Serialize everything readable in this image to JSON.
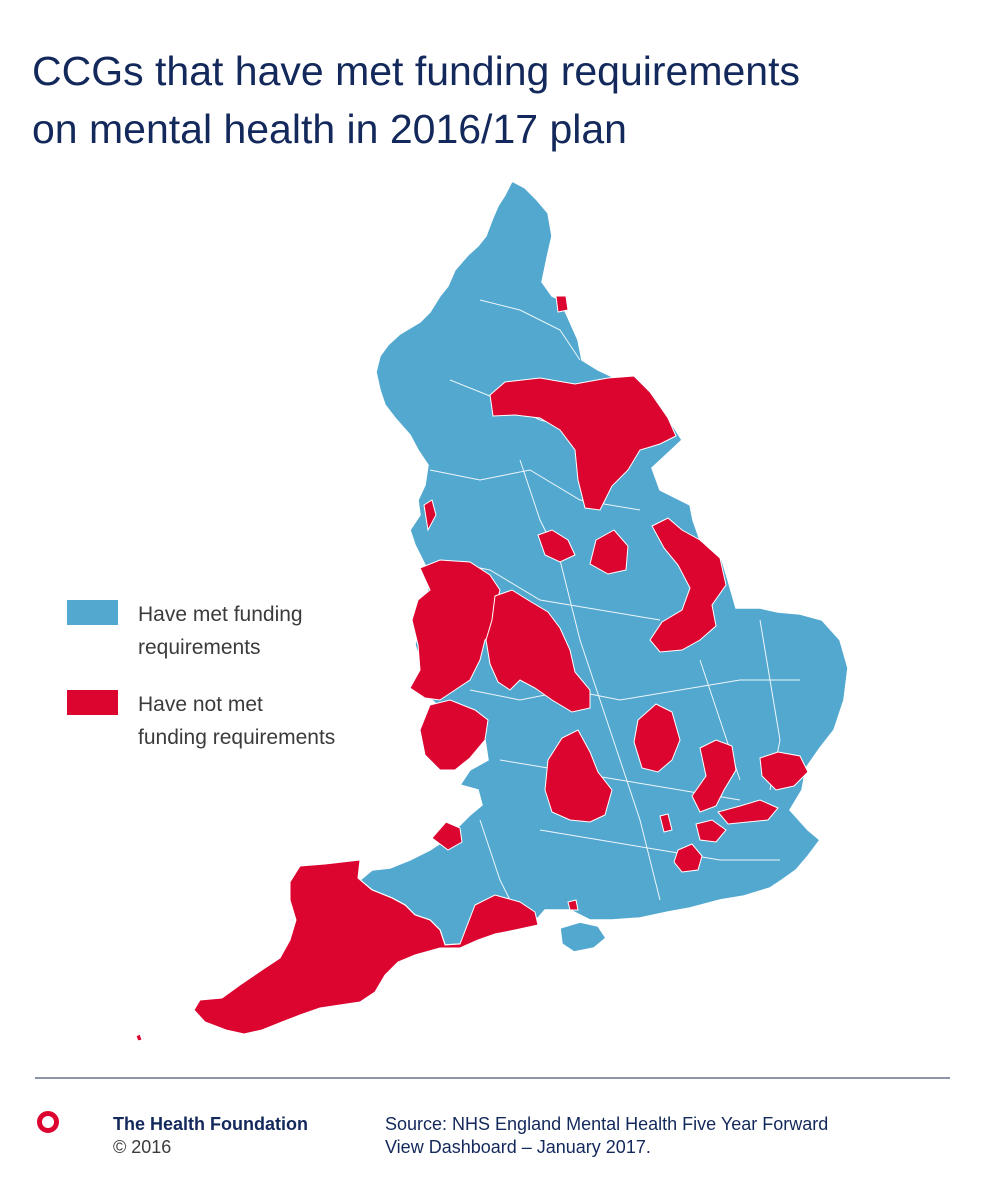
{
  "title": {
    "line1": "CCGs that have met funding requirements",
    "line2": "on mental health in 2016/17 plan"
  },
  "colors": {
    "met": "#52a8cf",
    "not_met": "#dc0530",
    "title": "#13285b",
    "borders": "#ffffff"
  },
  "legend": {
    "met": {
      "line1": "Have met funding",
      "line2": "requirements"
    },
    "not_met": {
      "line1": "Have not met",
      "line2": "funding requirements"
    }
  },
  "map": {
    "subject": "England CCG boundaries",
    "categories": [
      "Have met funding requirements",
      "Have not met funding requirements"
    ]
  },
  "footer": {
    "logo_icon": "ring-icon",
    "org_name": "The Health Foundation",
    "copyright": "© 2016",
    "source_line1": "Source: NHS England Mental Health Five Year Forward",
    "source_line2": "View Dashboard – January 2017."
  }
}
